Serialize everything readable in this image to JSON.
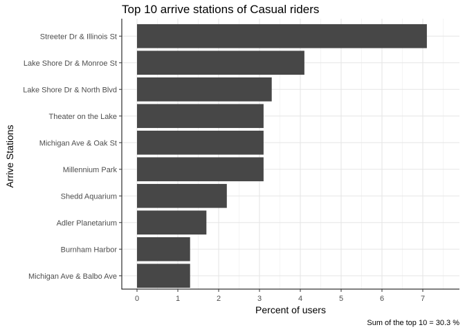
{
  "chart_data": {
    "type": "bar",
    "orientation": "horizontal",
    "title": "Top 10 arrive stations of Casual riders",
    "xlabel": "Percent of users",
    "ylabel": "Arrive Stations",
    "caption": "Sum of the top 10 = 30.3 %",
    "xlim": [
      0,
      7.5
    ],
    "xticks": [
      0,
      1,
      2,
      3,
      4,
      5,
      6,
      7
    ],
    "grid": true,
    "bar_color": "#474747",
    "categories": [
      "Streeter Dr & Illinois St",
      "Lake Shore Dr & Monroe St",
      "Lake Shore Dr & North Blvd",
      "Theater on the Lake",
      "Michigan Ave & Oak St",
      "Millennium Park",
      "Shedd Aquarium",
      "Adler Planetarium",
      "Burnham Harbor",
      "Michigan Ave & Balbo Ave"
    ],
    "values": [
      7.1,
      4.1,
      3.3,
      3.1,
      3.1,
      3.1,
      2.2,
      1.7,
      1.3,
      1.3
    ]
  }
}
